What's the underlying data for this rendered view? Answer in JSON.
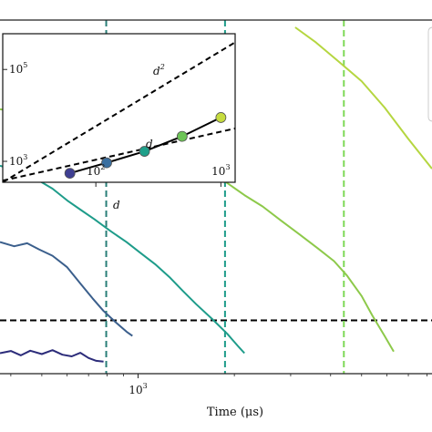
{
  "chart_data": [
    {
      "id": "main",
      "type": "line",
      "title": "",
      "xlabel": "Time (μs)",
      "ylabel": "",
      "x_scale": "log",
      "y_scale": "log",
      "grid": false,
      "x_ticks": [
        {
          "value": 1000,
          "label": "10",
          "sup": "3"
        }
      ],
      "x_view": [
        370,
        8300
      ],
      "y_view": [
        0.012,
        8.0
      ],
      "series": [
        {
          "color": "#2c2c7a",
          "points": [
            [
              370,
              0.0175
            ],
            [
              400,
              0.0182
            ],
            [
              430,
              0.0168
            ],
            [
              460,
              0.0183
            ],
            [
              500,
              0.0172
            ],
            [
              540,
              0.0185
            ],
            [
              580,
              0.017
            ],
            [
              620,
              0.0165
            ],
            [
              660,
              0.0176
            ],
            [
              700,
              0.016
            ],
            [
              740,
              0.0152
            ],
            [
              780,
              0.015
            ]
          ]
        },
        {
          "color": "#3b5f8c",
          "points": [
            [
              370,
              0.135
            ],
            [
              410,
              0.125
            ],
            [
              450,
              0.132
            ],
            [
              490,
              0.118
            ],
            [
              540,
              0.105
            ],
            [
              600,
              0.085
            ],
            [
              660,
              0.063
            ],
            [
              720,
              0.048
            ],
            [
              780,
              0.038
            ],
            [
              850,
              0.031
            ],
            [
              920,
              0.026
            ],
            [
              960,
              0.024
            ]
          ]
        },
        {
          "color": "#1e9c8a",
          "points": [
            [
              370,
              0.55
            ],
            [
              420,
              0.5
            ],
            [
              480,
              0.43
            ],
            [
              540,
              0.36
            ],
            [
              600,
              0.29
            ],
            [
              660,
              0.245
            ],
            [
              730,
              0.205
            ],
            [
              820,
              0.165
            ],
            [
              920,
              0.135
            ],
            [
              1020,
              0.11
            ],
            [
              1130,
              0.09
            ],
            [
              1260,
              0.07
            ],
            [
              1380,
              0.055
            ],
            [
              1520,
              0.043
            ],
            [
              1700,
              0.033
            ],
            [
              1900,
              0.025
            ],
            [
              2050,
              0.02
            ],
            [
              2150,
              0.0175
            ]
          ]
        },
        {
          "color": "#8dc94a",
          "points": [
            [
              370,
              1.55
            ],
            [
              450,
              1.45
            ],
            [
              550,
              1.28
            ],
            [
              650,
              1.16
            ],
            [
              750,
              1.17
            ],
            [
              820,
              1.2
            ],
            [
              900,
              1.14
            ],
            [
              1000,
              1.1
            ],
            [
              1100,
              1.02
            ],
            [
              1200,
              0.92
            ],
            [
              1350,
              0.76
            ],
            [
              1500,
              0.63
            ],
            [
              1700,
              0.5
            ],
            [
              1900,
              0.4
            ],
            [
              2150,
              0.32
            ],
            [
              2450,
              0.26
            ],
            [
              2800,
              0.2
            ],
            [
              3200,
              0.155
            ],
            [
              3650,
              0.12
            ],
            [
              4100,
              0.095
            ],
            [
              4500,
              0.073
            ],
            [
              5000,
              0.05
            ],
            [
              5400,
              0.035
            ],
            [
              5900,
              0.024
            ],
            [
              6300,
              0.018
            ]
          ]
        },
        {
          "color": "#b5d640",
          "points": [
            [
              3100,
              7.0
            ],
            [
              3600,
              5.3
            ],
            [
              4200,
              3.8
            ],
            [
              5000,
              2.6
            ],
            [
              5900,
              1.6
            ],
            [
              7000,
              0.9
            ],
            [
              8300,
              0.52
            ]
          ]
        }
      ],
      "reference_lines": [
        {
          "orientation": "horizontal",
          "y": 0.032,
          "color": "#000000",
          "style": "dashed"
        },
        {
          "orientation": "vertical",
          "x": 795,
          "color": "#2a7f78",
          "style": "dashed"
        },
        {
          "orientation": "vertical",
          "x": 1870,
          "color": "#1e9c8a",
          "style": "dashed"
        },
        {
          "orientation": "vertical",
          "x": 4400,
          "color": "#7ed957",
          "style": "dashed"
        }
      ],
      "annotations": [
        {
          "text": "d"
        }
      ]
    },
    {
      "id": "inset",
      "type": "scatter",
      "title": "",
      "x_scale": "log",
      "y_scale": "log",
      "grid": false,
      "x_view": [
        18,
        1300
      ],
      "y_view": [
        350,
        600000
      ],
      "x_ticks": [
        {
          "value": 100,
          "label": "10",
          "sup": "2"
        },
        {
          "value": 1000,
          "label": "10",
          "sup": "3"
        }
      ],
      "y_ticks": [
        {
          "value": 1000,
          "label": "10",
          "sup": "3"
        },
        {
          "value": 100000,
          "label": "10",
          "sup": "5"
        }
      ],
      "points": [
        {
          "x": 62,
          "y": 550,
          "color": "#3f3f92"
        },
        {
          "x": 122,
          "y": 930,
          "color": "#3a6fa0"
        },
        {
          "x": 245,
          "y": 1650,
          "color": "#1fa08a"
        },
        {
          "x": 490,
          "y": 3500,
          "color": "#6cc456"
        },
        {
          "x": 1000,
          "y": 9000,
          "color": "#c6dc3e"
        }
      ],
      "guides": [
        {
          "label": "d",
          "sup": "2",
          "from": [
            18,
            350
          ],
          "to": [
            1300,
            390000
          ]
        },
        {
          "label": "d",
          "sup": "",
          "from": [
            18,
            380
          ],
          "to": [
            1300,
            5200
          ]
        }
      ]
    }
  ]
}
